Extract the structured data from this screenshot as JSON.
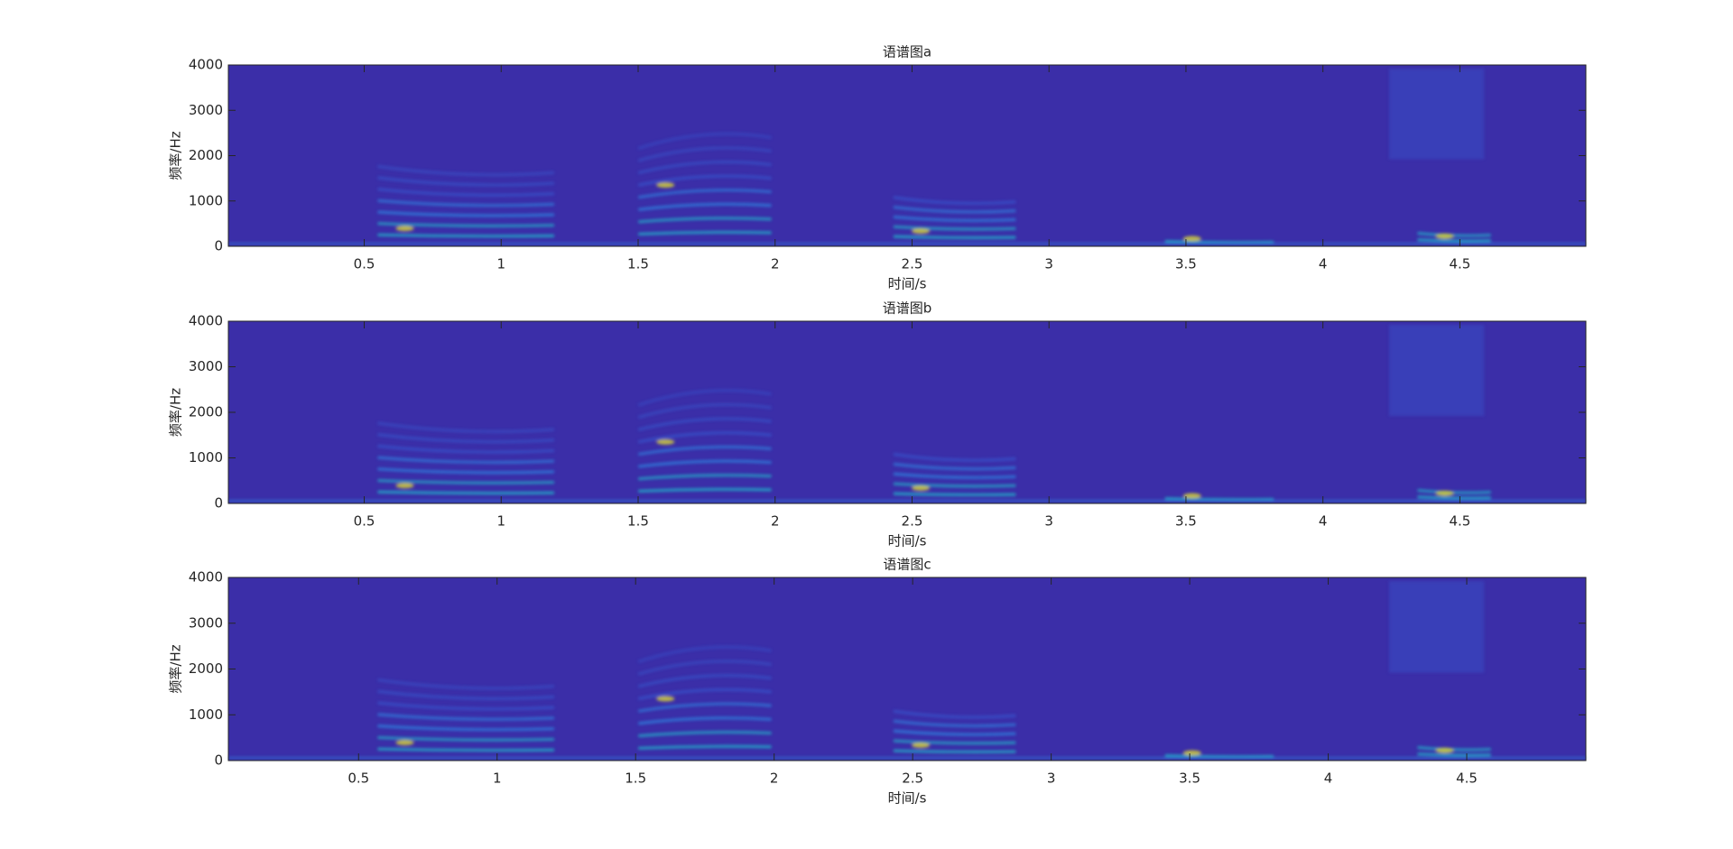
{
  "chart_data": [
    {
      "type": "spectrogram",
      "title": "语谱图a",
      "xlabel": "时间/s",
      "ylabel": "频率/Hz",
      "xlim": [
        0.004,
        4.96
      ],
      "xticks": [
        0.5,
        1,
        1.5,
        2,
        2.5,
        3,
        3.5,
        4,
        4.5
      ],
      "ylim": [
        0,
        4000
      ],
      "yticks": [
        0,
        1000,
        2000,
        3000,
        4000
      ],
      "color": "#3b2ea8"
    },
    {
      "type": "spectrogram",
      "title": "语谱图b",
      "xlabel": "时间/s",
      "ylabel": "频率/Hz",
      "xlim": [
        0.004,
        4.96
      ],
      "xticks": [
        0.5,
        1,
        1.5,
        2,
        2.5,
        3,
        3.5,
        4,
        4.5
      ],
      "ylim": [
        0,
        4000
      ],
      "yticks": [
        0,
        1000,
        2000,
        3000,
        4000
      ],
      "color": "#3b2ea8"
    },
    {
      "type": "spectrogram",
      "title": "语谱图c",
      "xlabel": "时间/s",
      "ylabel": "频率/Hz",
      "xlim": [
        0.03,
        4.93
      ],
      "xticks": [
        0.5,
        1,
        1.5,
        2,
        2.5,
        3,
        3.5,
        4,
        4.5
      ],
      "ylim": [
        0,
        4000
      ],
      "yticks": [
        0,
        1000,
        2000,
        3000,
        4000
      ],
      "color": "#3b2ea8"
    }
  ]
}
